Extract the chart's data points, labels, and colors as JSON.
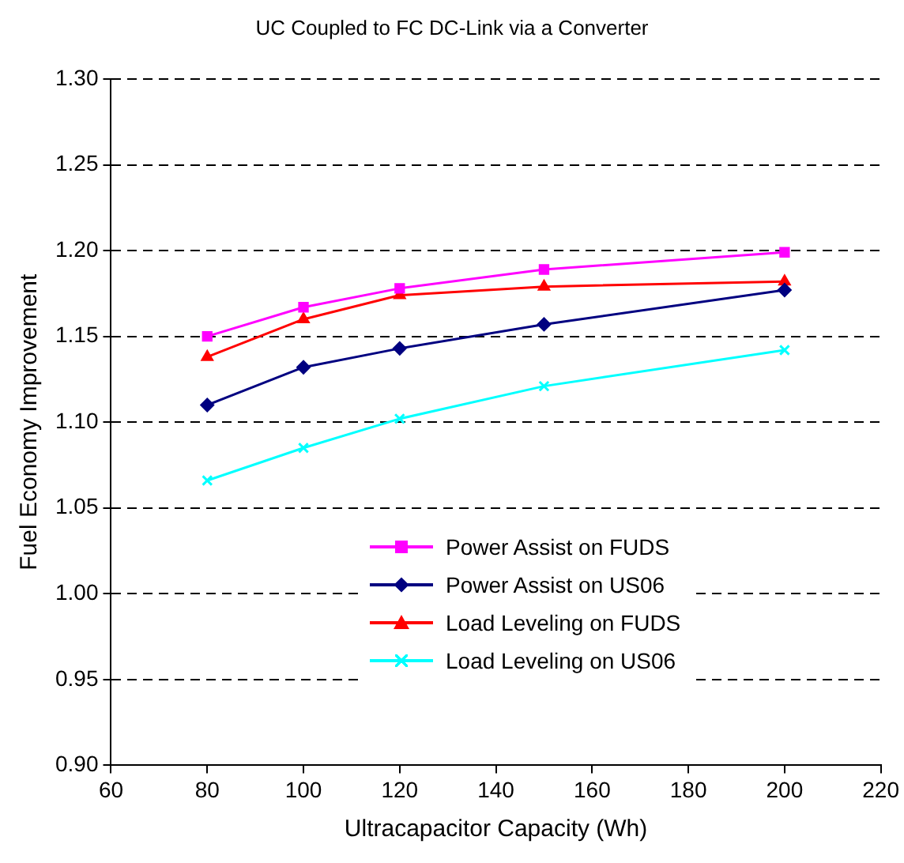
{
  "chart_data": {
    "type": "line",
    "title": "UC Coupled to FC DC-Link via a Converter",
    "xlabel": "Ultracapacitor Capacity (Wh)",
    "ylabel": "Fuel Economy Improvement",
    "x": [
      80,
      100,
      120,
      150,
      200
    ],
    "series": [
      {
        "name": "Power Assist on FUDS",
        "color": "#ff00ff",
        "marker": "square",
        "values": [
          1.15,
          1.167,
          1.178,
          1.189,
          1.199
        ]
      },
      {
        "name": "Power Assist on US06",
        "color": "#000080",
        "marker": "diamond",
        "values": [
          1.11,
          1.132,
          1.143,
          1.157,
          1.177
        ]
      },
      {
        "name": "Load Leveling on FUDS",
        "color": "#ff0000",
        "marker": "triangle",
        "values": [
          1.138,
          1.16,
          1.174,
          1.179,
          1.182
        ]
      },
      {
        "name": "Load Leveling on US06",
        "color": "#00ffff",
        "marker": "cross",
        "values": [
          1.066,
          1.085,
          1.102,
          1.121,
          1.142
        ]
      }
    ],
    "xlim": [
      60,
      220
    ],
    "xticks": [
      60,
      80,
      100,
      120,
      140,
      160,
      180,
      200,
      220
    ],
    "ylim": [
      0.9,
      1.3
    ],
    "yticks": [
      {
        "value": 0.9,
        "label": "0.90"
      },
      {
        "value": 0.95,
        "label": "0.95"
      },
      {
        "value": 1.0,
        "label": "1.00"
      },
      {
        "value": 1.05,
        "label": "1.05"
      },
      {
        "value": 1.1,
        "label": "1.10"
      },
      {
        "value": 1.15,
        "label": "1.15"
      },
      {
        "value": 1.2,
        "label": "1.20"
      },
      {
        "value": 1.25,
        "label": "1.25"
      },
      {
        "value": 1.3,
        "label": "1.30"
      }
    ],
    "grid": "y",
    "legend": "bottom right",
    "line_style": "solid"
  }
}
